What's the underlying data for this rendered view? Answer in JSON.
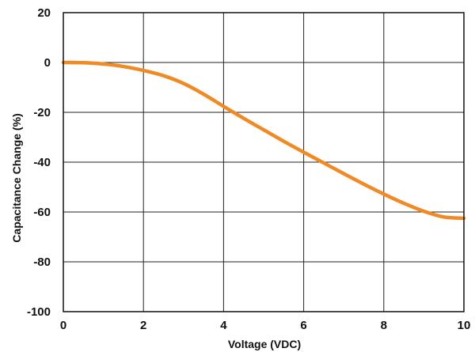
{
  "chart_data": {
    "type": "line",
    "title": "",
    "xlabel": "Voltage  (VDC)",
    "ylabel": "Capacitance Change (%)",
    "xlim": [
      0,
      10
    ],
    "ylim": [
      -100,
      20
    ],
    "xticks": [
      "0",
      "2",
      "4",
      "6",
      "8",
      "10"
    ],
    "yticks": [
      "20",
      "0",
      "-20",
      "-40",
      "-60",
      "-80",
      "-100"
    ],
    "grid": true,
    "legend": "none",
    "series": [
      {
        "color": "#f08a24",
        "x": [
          0,
          0.5,
          1.0,
          1.5,
          2.0,
          2.5,
          3.0,
          3.5,
          4.0,
          4.5,
          5.0,
          5.5,
          6.0,
          6.5,
          7.0,
          7.5,
          8.0,
          8.5,
          9.0,
          9.5,
          10.0
        ],
        "y": [
          0,
          -0.1,
          -0.6,
          -1.6,
          -3.2,
          -5.3,
          -8.4,
          -12.7,
          -17.6,
          -22.4,
          -27.0,
          -31.6,
          -36.0,
          -40.3,
          -44.6,
          -48.8,
          -52.8,
          -56.5,
          -59.7,
          -62.0,
          -62.5
        ]
      }
    ]
  }
}
